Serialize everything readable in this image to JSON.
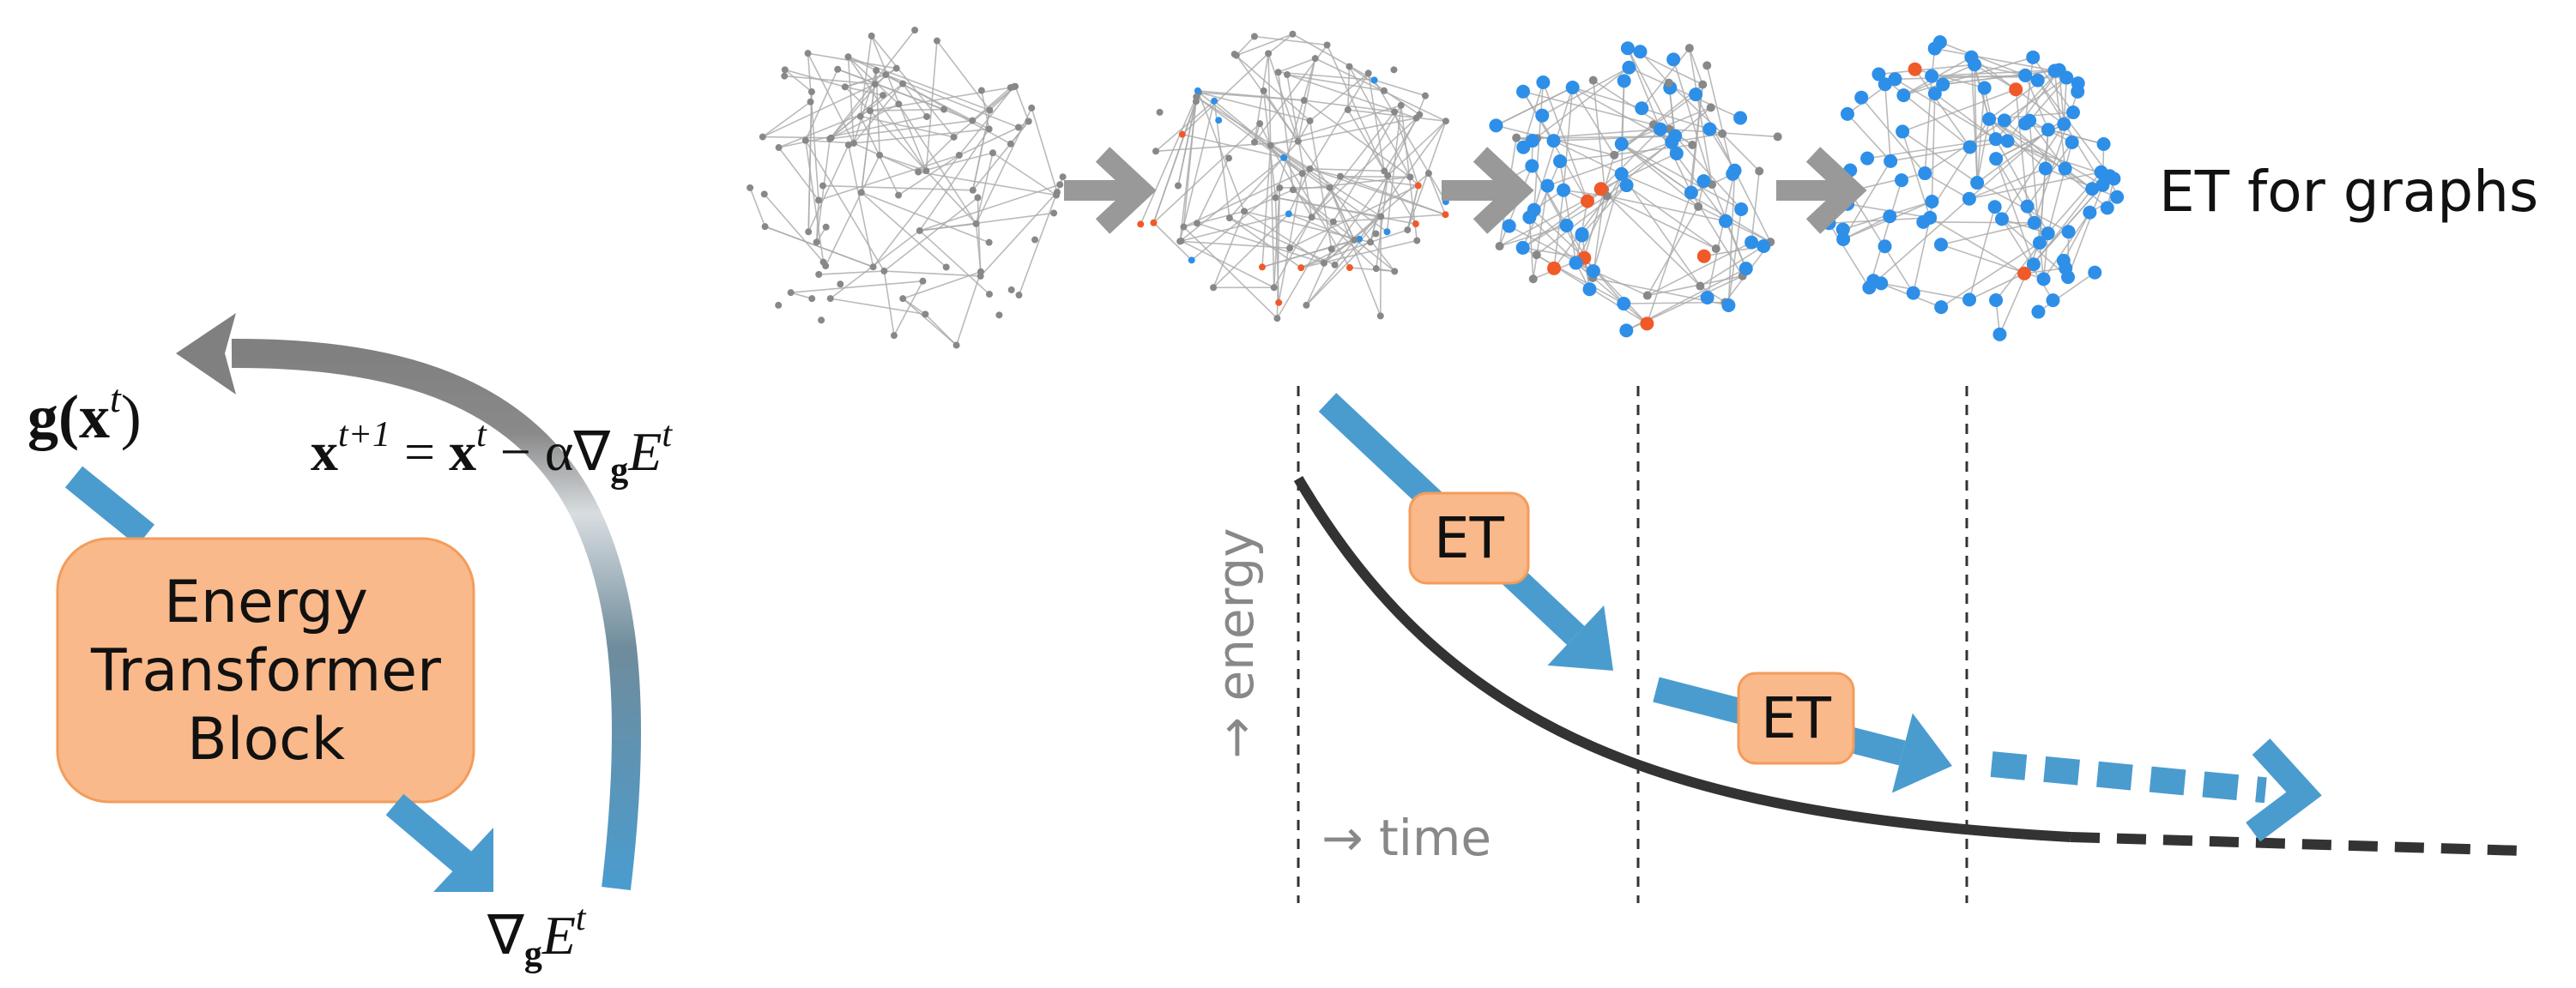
{
  "graph_label": "ET for graphs",
  "output_label": {
    "g": "g(",
    "x": "x",
    "sup": "t",
    "close": ")"
  },
  "update_rule": {
    "x": "x",
    "x_sup": "t+1",
    "eq": " = ",
    "x2": "x",
    "x2_sup": "t",
    "minus": " − α∇",
    "sub": "g",
    "E": "E",
    "E_sup": "t"
  },
  "block": {
    "lines": [
      "Energy",
      "Transformer",
      "Block"
    ]
  },
  "gradient_label": {
    "nabla": "∇",
    "sub": "g",
    "E": "E",
    "sup": "t"
  },
  "steps": [
    "ET",
    "ET"
  ],
  "y_axis_label": "→ energy",
  "x_axis_label": "→ time"
}
